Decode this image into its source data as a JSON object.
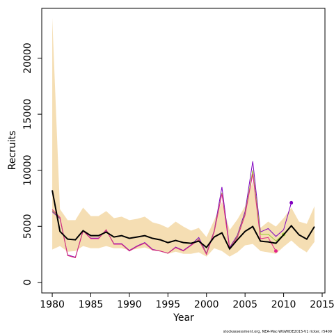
{
  "chart_data": {
    "type": "line",
    "x_label": "Year",
    "y_label": "Recruits",
    "footnote": "stockassessment.org, NEA-Mac-WGWIDE2015-V1 ricker, r5409",
    "x": [
      1980,
      1981,
      1982,
      1983,
      1984,
      1985,
      1986,
      1987,
      1988,
      1989,
      1990,
      1991,
      1992,
      1993,
      1994,
      1995,
      1996,
      1997,
      1998,
      1999,
      2000,
      2001,
      2002,
      2003,
      2004,
      2005,
      2006,
      2007,
      2008,
      2009,
      2010,
      2011,
      2012,
      2013,
      2014
    ],
    "xlim": [
      1978.64,
      2015.36
    ],
    "xticks": [
      1980,
      1985,
      1990,
      1995,
      2000,
      2005,
      2010,
      2015
    ],
    "ylim": [
      -940,
      24440
    ],
    "yticks": [
      0,
      5000,
      10000,
      15000,
      20000
    ],
    "band": {
      "color": "#f5deb3",
      "upper": [
        23600,
        6540,
        5550,
        5550,
        6670,
        5920,
        5920,
        6360,
        5730,
        5860,
        5550,
        5670,
        5860,
        5360,
        5170,
        4860,
        5420,
        4980,
        4610,
        4860,
        4050,
        5550,
        7170,
        4670,
        5610,
        6790,
        9030,
        4860,
        5420,
        4980,
        5730,
        6670,
        5420,
        5230,
        6790
      ],
      "lower": [
        2930,
        3240,
        2740,
        2800,
        3240,
        3050,
        3050,
        3240,
        3050,
        3050,
        2870,
        2990,
        3120,
        2870,
        2800,
        2550,
        2740,
        2550,
        2550,
        2680,
        2300,
        3050,
        2800,
        2300,
        2680,
        3300,
        3430,
        2800,
        2680,
        2550,
        3180,
        3740,
        3120,
        2680,
        3610
      ]
    },
    "series": [
      {
        "color": "#8000c0",
        "width": 1,
        "values": [
          6300,
          5700,
          2450,
          2250,
          4600,
          3950,
          3950,
          4650,
          3450,
          3450,
          2850,
          3250,
          3550,
          2950,
          2800,
          2600,
          3150,
          2850,
          3350,
          4000,
          2600,
          4600,
          8500,
          3100,
          4200,
          6300,
          10800,
          4500,
          4800,
          4100,
          4700,
          7100,
          null,
          null,
          null
        ]
      },
      {
        "color": "#9acd32",
        "width": 1,
        "values": [
          6400,
          5750,
          2400,
          2200,
          4600,
          3900,
          3900,
          4700,
          3400,
          3400,
          2800,
          3200,
          3500,
          2900,
          2800,
          2600,
          3100,
          2800,
          3300,
          3850,
          2550,
          4550,
          8000,
          3000,
          4100,
          6100,
          10000,
          4300,
          4300,
          3700,
          4270,
          null,
          null,
          null,
          null
        ]
      },
      {
        "color": "#e0218a",
        "width": 1,
        "values": [
          6500,
          5800,
          2400,
          2200,
          4600,
          3900,
          3900,
          4700,
          3400,
          3400,
          2800,
          3200,
          3500,
          2900,
          2800,
          2600,
          3100,
          2800,
          3300,
          3800,
          2500,
          4500,
          7900,
          3000,
          4000,
          6000,
          9700,
          3900,
          4000,
          2800,
          null,
          null,
          null,
          null,
          null
        ]
      },
      {
        "color": "#000000",
        "width": 2,
        "values": [
          8220,
          4550,
          3860,
          3800,
          4610,
          4170,
          4170,
          4490,
          4050,
          4170,
          3930,
          4050,
          4170,
          3930,
          3800,
          3550,
          3740,
          3550,
          3490,
          3680,
          3120,
          4050,
          4420,
          2990,
          3800,
          4550,
          4980,
          3680,
          3610,
          3490,
          4240,
          5050,
          4240,
          3860,
          4980
        ]
      }
    ]
  }
}
